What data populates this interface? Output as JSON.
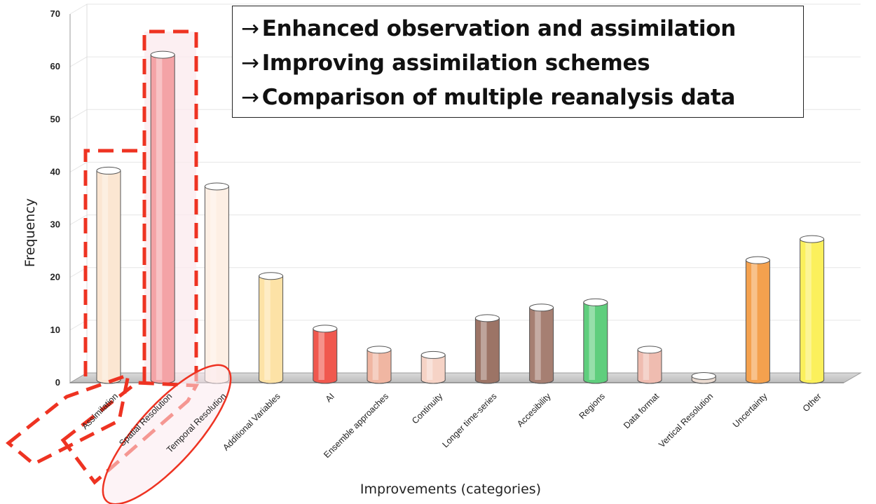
{
  "chart_data": {
    "type": "bar",
    "xlabel": "Improvements (categories)",
    "ylabel": "Frequency",
    "ylim": [
      0,
      70
    ],
    "yticks": [
      0,
      10,
      20,
      30,
      40,
      50,
      60,
      70
    ],
    "grid": true,
    "categories": [
      "Assimilation",
      "Spatial Resolution",
      "Temporal Resolution",
      "Additional Variables",
      "AI",
      "Ensemble approaches",
      "Continuity",
      "Longer time-series",
      "Accesibility",
      "Regions",
      "Data format",
      "Vertical Resolution",
      "Uncertainty",
      "Other"
    ],
    "values": [
      40,
      62,
      37,
      20,
      10,
      6,
      5,
      12,
      14,
      15,
      6,
      1,
      23,
      27
    ],
    "bar_colors": [
      "#fbe6d2",
      "#f4a3a6",
      "#fdefe4",
      "#fde2a6",
      "#f0584e",
      "#f0b6a2",
      "#f6d3c6",
      "#9c7466",
      "#a67f72",
      "#5fce7d",
      "#efbcb0",
      "#e9dad0",
      "#f4a14e",
      "#fbf05c"
    ],
    "highlight_color": "#ee3322",
    "annotations": [
      "Enhanced observation and assimilation",
      "Improving assimilation schemes",
      "Comparison of multiple reanalysis data"
    ],
    "annotation_arrow": "→"
  }
}
